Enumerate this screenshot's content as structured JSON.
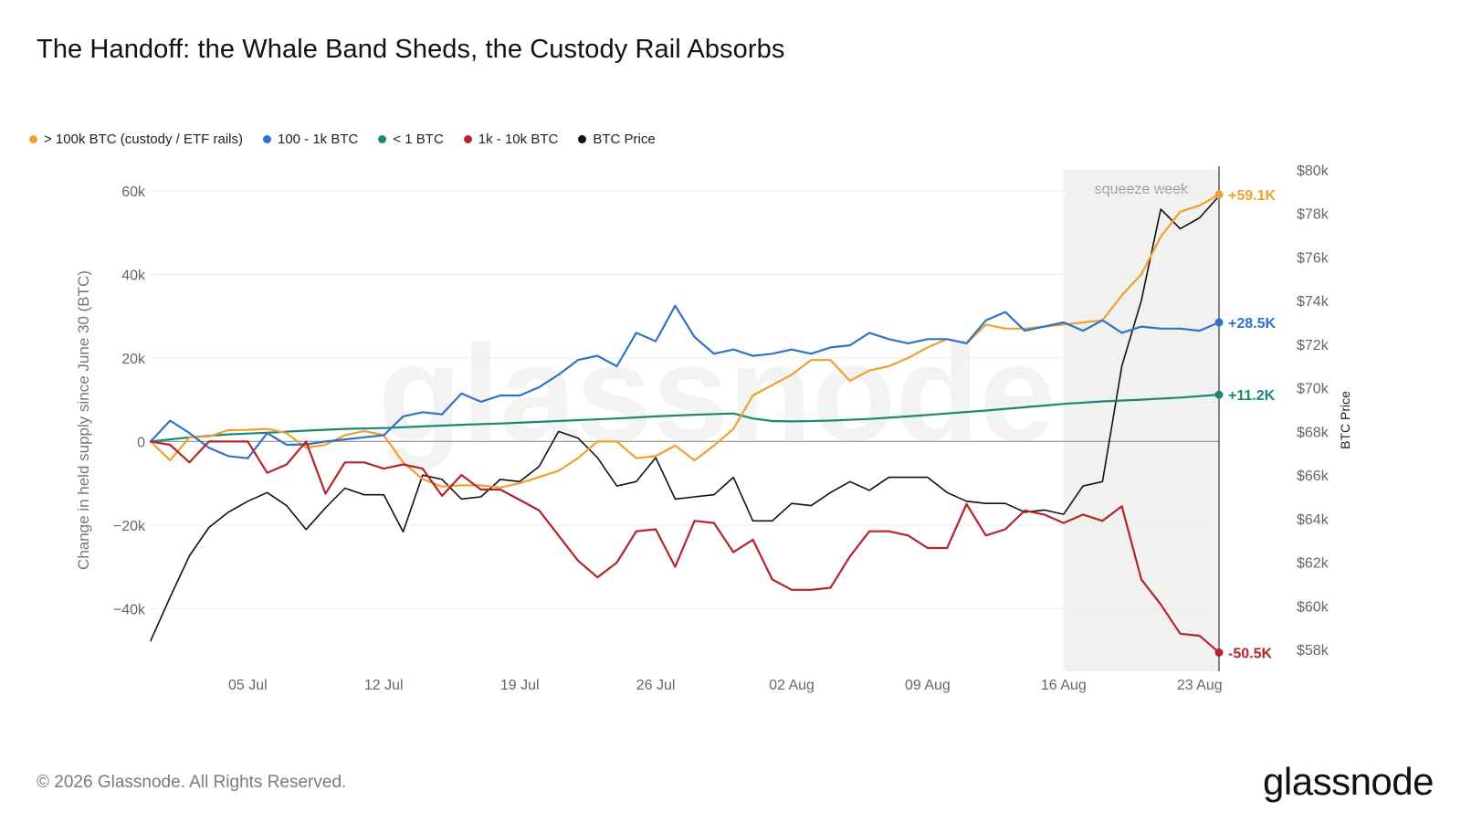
{
  "header": {
    "title": "The Handoff: the Whale Band Sheds, the Custody Rail Absorbs"
  },
  "footer": {
    "copyright": "© 2026 Glassnode. All Rights Reserved.",
    "brand": "glassnode"
  },
  "chart_data": {
    "type": "line",
    "title": "The Handoff: the Whale Band Sheds, the Custody Rail Absorbs",
    "ylabel": "Change in held supply since June 30 (BTC)",
    "y2label": "BTC Price",
    "ylim": [
      -55000,
      65000
    ],
    "y2lim": [
      57000,
      80000
    ],
    "yticks": [
      60000,
      40000,
      20000,
      0,
      -20000,
      -40000
    ],
    "ytick_labels": [
      "60k",
      "40k",
      "20k",
      "0",
      "−20k",
      "−40k"
    ],
    "y2ticks": [
      80000,
      78000,
      76000,
      74000,
      72000,
      70000,
      68000,
      66000,
      64000,
      62000,
      60000,
      58000
    ],
    "y2tick_labels": [
      "$80k",
      "$78k",
      "$76k",
      "$74k",
      "$72k",
      "$70k",
      "$68k",
      "$66k",
      "$64k",
      "$62k",
      "$60k",
      "$58k"
    ],
    "x_start": "2026-06-30",
    "x_end": "2026-08-24",
    "xticks": [
      "2026-07-05",
      "2026-07-12",
      "2026-07-19",
      "2026-07-26",
      "2026-08-02",
      "2026-08-09",
      "2026-08-16",
      "2026-08-23"
    ],
    "xtick_labels": [
      "05 Jul",
      "12 Jul",
      "19 Jul",
      "26 Jul",
      "02 Aug",
      "09 Aug",
      "16 Aug",
      "23 Aug"
    ],
    "grid": true,
    "legend_position": "top-left",
    "shaded_region": {
      "label": "squeeze week",
      "start": "2026-08-16",
      "end": "2026-08-24"
    },
    "watermark": "glassnode",
    "series": [
      {
        "name": "> 100k BTC (custody / ETF rails)",
        "color": "#f0a02e",
        "axis": "left",
        "end_label": "+59.1K",
        "points": [
          [
            "2026-06-30",
            0
          ],
          [
            "2026-07-01",
            -4500
          ],
          [
            "2026-07-02",
            1000
          ],
          [
            "2026-07-03",
            1200
          ],
          [
            "2026-07-04",
            2700
          ],
          [
            "2026-07-05",
            2800
          ],
          [
            "2026-07-06",
            3000
          ],
          [
            "2026-07-07",
            2000
          ],
          [
            "2026-07-08",
            -1500
          ],
          [
            "2026-07-09",
            -800
          ],
          [
            "2026-07-10",
            1500
          ],
          [
            "2026-07-11",
            2500
          ],
          [
            "2026-07-12",
            1500
          ],
          [
            "2026-07-13",
            -5000
          ],
          [
            "2026-07-14",
            -9000
          ],
          [
            "2026-07-15",
            -10800
          ],
          [
            "2026-07-16",
            -10500
          ],
          [
            "2026-07-17",
            -10500
          ],
          [
            "2026-07-18",
            -11000
          ],
          [
            "2026-07-19",
            -10000
          ],
          [
            "2026-07-20",
            -8500
          ],
          [
            "2026-07-21",
            -7000
          ],
          [
            "2026-07-22",
            -4000
          ],
          [
            "2026-07-23",
            0
          ],
          [
            "2026-07-24",
            0
          ],
          [
            "2026-07-25",
            -4000
          ],
          [
            "2026-07-26",
            -3500
          ],
          [
            "2026-07-27",
            -1000
          ],
          [
            "2026-07-28",
            -4500
          ],
          [
            "2026-07-29",
            -1000
          ],
          [
            "2026-07-30",
            3000
          ],
          [
            "2026-07-31",
            11000
          ],
          [
            "2026-08-01",
            13500
          ],
          [
            "2026-08-02",
            16000
          ],
          [
            "2026-08-03",
            19500
          ],
          [
            "2026-08-04",
            19500
          ],
          [
            "2026-08-05",
            14500
          ],
          [
            "2026-08-06",
            17000
          ],
          [
            "2026-08-07",
            18000
          ],
          [
            "2026-08-08",
            20000
          ],
          [
            "2026-08-09",
            22500
          ],
          [
            "2026-08-10",
            24500
          ],
          [
            "2026-08-11",
            23500
          ],
          [
            "2026-08-12",
            28000
          ],
          [
            "2026-08-13",
            27000
          ],
          [
            "2026-08-14",
            27000
          ],
          [
            "2026-08-15",
            27500
          ],
          [
            "2026-08-16",
            28000
          ],
          [
            "2026-08-17",
            28500
          ],
          [
            "2026-08-18",
            29000
          ],
          [
            "2026-08-19",
            35000
          ],
          [
            "2026-08-20",
            40000
          ],
          [
            "2026-08-21",
            49000
          ],
          [
            "2026-08-22",
            55000
          ],
          [
            "2026-08-23",
            56500
          ],
          [
            "2026-08-24",
            59100
          ]
        ]
      },
      {
        "name": "100 - 1k BTC",
        "color": "#2e73c8",
        "axis": "left",
        "end_label": "+28.5K",
        "points": [
          [
            "2026-06-30",
            0
          ],
          [
            "2026-07-01",
            5000
          ],
          [
            "2026-07-02",
            2000
          ],
          [
            "2026-07-03",
            -1500
          ],
          [
            "2026-07-04",
            -3500
          ],
          [
            "2026-07-05",
            -4000
          ],
          [
            "2026-07-06",
            2000
          ],
          [
            "2026-07-07",
            -800
          ],
          [
            "2026-07-08",
            -700
          ],
          [
            "2026-07-09",
            0
          ],
          [
            "2026-07-10",
            500
          ],
          [
            "2026-07-11",
            1000
          ],
          [
            "2026-07-12",
            1500
          ],
          [
            "2026-07-13",
            6000
          ],
          [
            "2026-07-14",
            7000
          ],
          [
            "2026-07-15",
            6500
          ],
          [
            "2026-07-16",
            11500
          ],
          [
            "2026-07-17",
            9500
          ],
          [
            "2026-07-18",
            11000
          ],
          [
            "2026-07-19",
            11000
          ],
          [
            "2026-07-20",
            13000
          ],
          [
            "2026-07-21",
            16000
          ],
          [
            "2026-07-22",
            19500
          ],
          [
            "2026-07-23",
            20500
          ],
          [
            "2026-07-24",
            18000
          ],
          [
            "2026-07-25",
            26000
          ],
          [
            "2026-07-26",
            24000
          ],
          [
            "2026-07-27",
            32500
          ],
          [
            "2026-07-28",
            25000
          ],
          [
            "2026-07-29",
            21000
          ],
          [
            "2026-07-30",
            22000
          ],
          [
            "2026-07-31",
            20500
          ],
          [
            "2026-08-01",
            21000
          ],
          [
            "2026-08-02",
            22000
          ],
          [
            "2026-08-03",
            21000
          ],
          [
            "2026-08-04",
            22500
          ],
          [
            "2026-08-05",
            23000
          ],
          [
            "2026-08-06",
            26000
          ],
          [
            "2026-08-07",
            24500
          ],
          [
            "2026-08-08",
            23500
          ],
          [
            "2026-08-09",
            24500
          ],
          [
            "2026-08-10",
            24500
          ],
          [
            "2026-08-11",
            23500
          ],
          [
            "2026-08-12",
            29000
          ],
          [
            "2026-08-13",
            31000
          ],
          [
            "2026-08-14",
            26500
          ],
          [
            "2026-08-15",
            27500
          ],
          [
            "2026-08-16",
            28500
          ],
          [
            "2026-08-17",
            26500
          ],
          [
            "2026-08-18",
            29000
          ],
          [
            "2026-08-19",
            26000
          ],
          [
            "2026-08-20",
            27500
          ],
          [
            "2026-08-21",
            27000
          ],
          [
            "2026-08-22",
            27000
          ],
          [
            "2026-08-23",
            26500
          ],
          [
            "2026-08-24",
            28500
          ]
        ]
      },
      {
        "name": "< 1 BTC",
        "color": "#1b8775",
        "axis": "left",
        "end_label": "+11.2K",
        "points": [
          [
            "2026-06-30",
            0
          ],
          [
            "2026-07-02",
            1000
          ],
          [
            "2026-07-04",
            1700
          ],
          [
            "2026-07-06",
            2100
          ],
          [
            "2026-07-08",
            2600
          ],
          [
            "2026-07-10",
            3000
          ],
          [
            "2026-07-12",
            3200
          ],
          [
            "2026-07-14",
            3600
          ],
          [
            "2026-07-16",
            4000
          ],
          [
            "2026-07-18",
            4300
          ],
          [
            "2026-07-20",
            4700
          ],
          [
            "2026-07-22",
            5100
          ],
          [
            "2026-07-24",
            5500
          ],
          [
            "2026-07-26",
            6000
          ],
          [
            "2026-07-28",
            6400
          ],
          [
            "2026-07-30",
            6700
          ],
          [
            "2026-07-31",
            5500
          ],
          [
            "2026-08-01",
            4900
          ],
          [
            "2026-08-02",
            4800
          ],
          [
            "2026-08-04",
            5000
          ],
          [
            "2026-08-06",
            5400
          ],
          [
            "2026-08-08",
            6000
          ],
          [
            "2026-08-10",
            6700
          ],
          [
            "2026-08-12",
            7400
          ],
          [
            "2026-08-14",
            8200
          ],
          [
            "2026-08-16",
            9000
          ],
          [
            "2026-08-18",
            9600
          ],
          [
            "2026-08-20",
            10000
          ],
          [
            "2026-08-22",
            10500
          ],
          [
            "2026-08-24",
            11200
          ]
        ]
      },
      {
        "name": "1k - 10k BTC",
        "color": "#b5242b",
        "axis": "left",
        "end_label": "-50.5K",
        "points": [
          [
            "2026-06-30",
            0
          ],
          [
            "2026-07-01",
            -800
          ],
          [
            "2026-07-02",
            -5000
          ],
          [
            "2026-07-03",
            0
          ],
          [
            "2026-07-04",
            0
          ],
          [
            "2026-07-05",
            0
          ],
          [
            "2026-07-06",
            -7500
          ],
          [
            "2026-07-07",
            -5500
          ],
          [
            "2026-07-08",
            0
          ],
          [
            "2026-07-09",
            -12500
          ],
          [
            "2026-07-10",
            -5000
          ],
          [
            "2026-07-11",
            -5000
          ],
          [
            "2026-07-12",
            -6500
          ],
          [
            "2026-07-13",
            -5500
          ],
          [
            "2026-07-14",
            -6500
          ],
          [
            "2026-07-15",
            -13000
          ],
          [
            "2026-07-16",
            -8000
          ],
          [
            "2026-07-17",
            -11500
          ],
          [
            "2026-07-18",
            -11500
          ],
          [
            "2026-07-19",
            -14000
          ],
          [
            "2026-07-20",
            -16500
          ],
          [
            "2026-07-21",
            -22500
          ],
          [
            "2026-07-22",
            -28500
          ],
          [
            "2026-07-23",
            -32500
          ],
          [
            "2026-07-24",
            -29000
          ],
          [
            "2026-07-25",
            -21500
          ],
          [
            "2026-07-26",
            -21000
          ],
          [
            "2026-07-27",
            -30000
          ],
          [
            "2026-07-28",
            -19000
          ],
          [
            "2026-07-29",
            -19500
          ],
          [
            "2026-07-30",
            -26500
          ],
          [
            "2026-07-31",
            -23500
          ],
          [
            "2026-08-01",
            -33000
          ],
          [
            "2026-08-02",
            -35500
          ],
          [
            "2026-08-03",
            -35500
          ],
          [
            "2026-08-04",
            -35000
          ],
          [
            "2026-08-05",
            -27500
          ],
          [
            "2026-08-06",
            -21500
          ],
          [
            "2026-08-07",
            -21500
          ],
          [
            "2026-08-08",
            -22500
          ],
          [
            "2026-08-09",
            -25500
          ],
          [
            "2026-08-10",
            -25500
          ],
          [
            "2026-08-11",
            -15000
          ],
          [
            "2026-08-12",
            -22500
          ],
          [
            "2026-08-13",
            -21000
          ],
          [
            "2026-08-14",
            -16500
          ],
          [
            "2026-08-15",
            -17500
          ],
          [
            "2026-08-16",
            -19500
          ],
          [
            "2026-08-17",
            -17500
          ],
          [
            "2026-08-18",
            -19000
          ],
          [
            "2026-08-19",
            -15500
          ],
          [
            "2026-08-20",
            -33000
          ],
          [
            "2026-08-21",
            -39000
          ],
          [
            "2026-08-22",
            -46000
          ],
          [
            "2026-08-23",
            -46500
          ],
          [
            "2026-08-24",
            -50500
          ]
        ]
      },
      {
        "name": "BTC Price",
        "color": "#111111",
        "axis": "right",
        "points": [
          [
            "2026-06-30",
            58400
          ],
          [
            "2026-07-01",
            60400
          ],
          [
            "2026-07-02",
            62300
          ],
          [
            "2026-07-03",
            63600
          ],
          [
            "2026-07-04",
            64300
          ],
          [
            "2026-07-05",
            64800
          ],
          [
            "2026-07-06",
            65200
          ],
          [
            "2026-07-07",
            64600
          ],
          [
            "2026-07-08",
            63500
          ],
          [
            "2026-07-09",
            64500
          ],
          [
            "2026-07-10",
            65400
          ],
          [
            "2026-07-11",
            65100
          ],
          [
            "2026-07-12",
            65100
          ],
          [
            "2026-07-13",
            63400
          ],
          [
            "2026-07-14",
            66000
          ],
          [
            "2026-07-15",
            65800
          ],
          [
            "2026-07-16",
            64900
          ],
          [
            "2026-07-17",
            65000
          ],
          [
            "2026-07-18",
            65800
          ],
          [
            "2026-07-19",
            65700
          ],
          [
            "2026-07-20",
            66400
          ],
          [
            "2026-07-21",
            68000
          ],
          [
            "2026-07-22",
            67700
          ],
          [
            "2026-07-23",
            66800
          ],
          [
            "2026-07-24",
            65500
          ],
          [
            "2026-07-25",
            65700
          ],
          [
            "2026-07-26",
            66800
          ],
          [
            "2026-07-27",
            64900
          ],
          [
            "2026-07-28",
            65000
          ],
          [
            "2026-07-29",
            65100
          ],
          [
            "2026-07-30",
            65900
          ],
          [
            "2026-07-31",
            63900
          ],
          [
            "2026-08-01",
            63900
          ],
          [
            "2026-08-02",
            64700
          ],
          [
            "2026-08-03",
            64600
          ],
          [
            "2026-08-04",
            65200
          ],
          [
            "2026-08-05",
            65700
          ],
          [
            "2026-08-06",
            65300
          ],
          [
            "2026-08-07",
            65900
          ],
          [
            "2026-08-08",
            65900
          ],
          [
            "2026-08-09",
            65900
          ],
          [
            "2026-08-10",
            65200
          ],
          [
            "2026-08-11",
            64800
          ],
          [
            "2026-08-12",
            64700
          ],
          [
            "2026-08-13",
            64700
          ],
          [
            "2026-08-14",
            64300
          ],
          [
            "2026-08-15",
            64400
          ],
          [
            "2026-08-16",
            64200
          ],
          [
            "2026-08-17",
            65500
          ],
          [
            "2026-08-18",
            65700
          ],
          [
            "2026-08-19",
            71000
          ],
          [
            "2026-08-20",
            74000
          ],
          [
            "2026-08-21",
            78200
          ],
          [
            "2026-08-22",
            77300
          ],
          [
            "2026-08-23",
            77800
          ],
          [
            "2026-08-24",
            78800
          ]
        ]
      }
    ]
  }
}
